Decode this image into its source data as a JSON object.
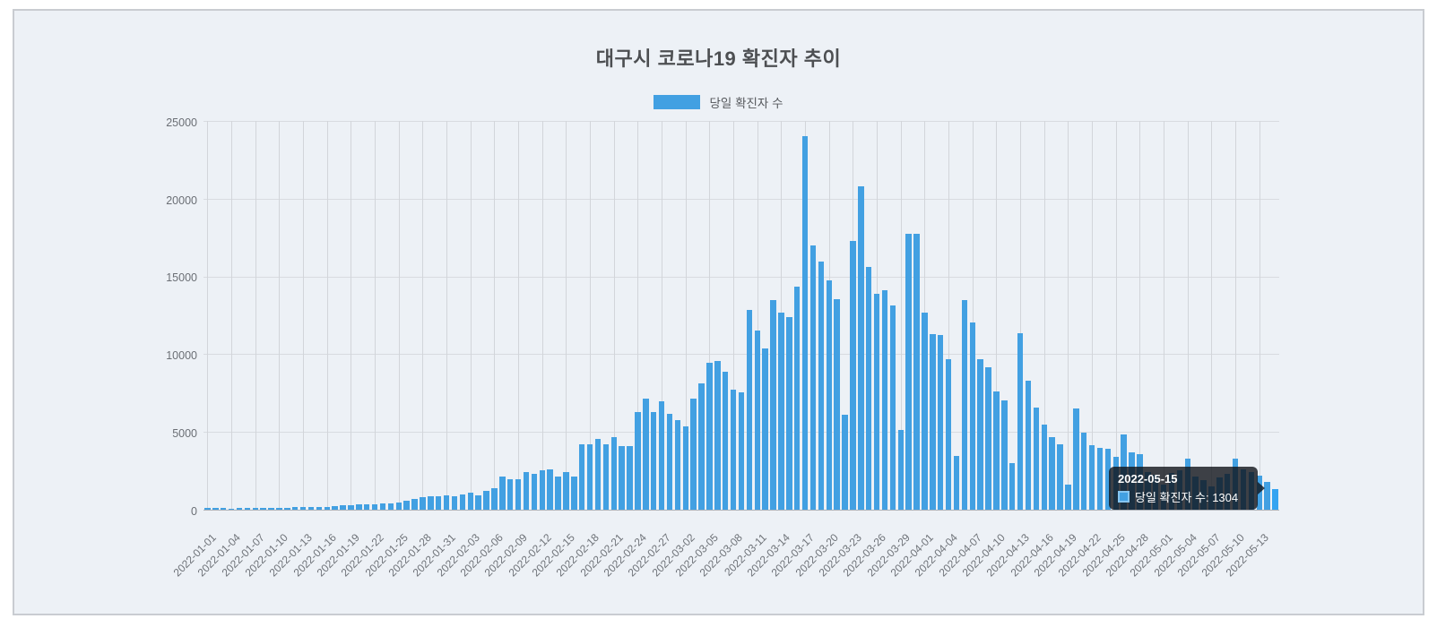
{
  "page": {
    "background": "#ffffff",
    "panel_background": "#edf1f6",
    "panel_border": "#c9ccd1"
  },
  "chart": {
    "title": "대구시 코로나19 확진자 추이",
    "legend": {
      "label": "당일 확진자 수"
    },
    "y_axis": {
      "tick_labels": [
        "0",
        "5000",
        "10000",
        "15000",
        "20000",
        "25000"
      ]
    },
    "tooltip": {
      "title": "2022-05-15",
      "line": "당일 확진자 수: 1304"
    }
  },
  "chart_data": {
    "type": "bar",
    "title": "대구시 코로나19 확진자 추이",
    "series_name": "당일 확진자 수",
    "bar_color": "#42a0e2",
    "hover_bar_color": "#35a4f1",
    "ylim": [
      0,
      25000
    ],
    "y_ticks": [
      0,
      5000,
      10000,
      15000,
      20000,
      25000
    ],
    "x_tick_every": 3,
    "grid": true,
    "legend_position": "top",
    "hovered_point": {
      "date": "2022-05-15",
      "value": 1304
    },
    "x": [
      "2022-01-01",
      "2022-01-02",
      "2022-01-03",
      "2022-01-04",
      "2022-01-05",
      "2022-01-06",
      "2022-01-07",
      "2022-01-08",
      "2022-01-09",
      "2022-01-10",
      "2022-01-11",
      "2022-01-12",
      "2022-01-13",
      "2022-01-14",
      "2022-01-15",
      "2022-01-16",
      "2022-01-17",
      "2022-01-18",
      "2022-01-19",
      "2022-01-20",
      "2022-01-21",
      "2022-01-22",
      "2022-01-23",
      "2022-01-24",
      "2022-01-25",
      "2022-01-26",
      "2022-01-27",
      "2022-01-28",
      "2022-01-29",
      "2022-01-30",
      "2022-01-31",
      "2022-02-01",
      "2022-02-02",
      "2022-02-03",
      "2022-02-04",
      "2022-02-05",
      "2022-02-06",
      "2022-02-07",
      "2022-02-08",
      "2022-02-09",
      "2022-02-10",
      "2022-02-11",
      "2022-02-12",
      "2022-02-13",
      "2022-02-14",
      "2022-02-15",
      "2022-02-16",
      "2022-02-17",
      "2022-02-18",
      "2022-02-19",
      "2022-02-20",
      "2022-02-21",
      "2022-02-22",
      "2022-02-23",
      "2022-02-24",
      "2022-02-25",
      "2022-02-26",
      "2022-02-27",
      "2022-02-28",
      "2022-03-01",
      "2022-03-02",
      "2022-03-03",
      "2022-03-04",
      "2022-03-05",
      "2022-03-06",
      "2022-03-07",
      "2022-03-08",
      "2022-03-09",
      "2022-03-10",
      "2022-03-11",
      "2022-03-12",
      "2022-03-13",
      "2022-03-14",
      "2022-03-15",
      "2022-03-16",
      "2022-03-17",
      "2022-03-18",
      "2022-03-19",
      "2022-03-20",
      "2022-03-21",
      "2022-03-22",
      "2022-03-23",
      "2022-03-24",
      "2022-03-25",
      "2022-03-26",
      "2022-03-27",
      "2022-03-28",
      "2022-03-29",
      "2022-03-30",
      "2022-03-31",
      "2022-04-01",
      "2022-04-02",
      "2022-04-03",
      "2022-04-04",
      "2022-04-05",
      "2022-04-06",
      "2022-04-07",
      "2022-04-08",
      "2022-04-09",
      "2022-04-10",
      "2022-04-11",
      "2022-04-12",
      "2022-04-13",
      "2022-04-14",
      "2022-04-15",
      "2022-04-16",
      "2022-04-17",
      "2022-04-18",
      "2022-04-19",
      "2022-04-20",
      "2022-04-21",
      "2022-04-22",
      "2022-04-23",
      "2022-04-24",
      "2022-04-25",
      "2022-04-26",
      "2022-04-27",
      "2022-04-28",
      "2022-04-29",
      "2022-04-30",
      "2022-05-01",
      "2022-05-02",
      "2022-05-03",
      "2022-05-04",
      "2022-05-05",
      "2022-05-06",
      "2022-05-07",
      "2022-05-08",
      "2022-05-09",
      "2022-05-10",
      "2022-05-11",
      "2022-05-12",
      "2022-05-13",
      "2022-05-14",
      "2022-05-15"
    ],
    "values": [
      120,
      95,
      105,
      85,
      110,
      100,
      115,
      130,
      110,
      125,
      140,
      155,
      150,
      170,
      185,
      200,
      230,
      260,
      290,
      330,
      360,
      340,
      380,
      403,
      442,
      595,
      710,
      826,
      864,
      864,
      922,
      864,
      979,
      1075,
      922,
      1210,
      1402,
      2131,
      1939,
      1939,
      2419,
      2323,
      2515,
      2611,
      2131,
      2419,
      2131,
      4205,
      4205,
      4531,
      4205,
      4685,
      4090,
      4090,
      6278,
      7142,
      6278,
      6970,
      6163,
      5779,
      5357,
      7123,
      8122,
      9466,
      9542,
      8851,
      7738,
      7565,
      12845,
      11539,
      10349,
      13459,
      12653,
      12384,
      14323,
      24022,
      16993,
      15958,
      14770,
      13544,
      6111,
      17280,
      20806,
      15594,
      13908,
      14100,
      13141,
      5153,
      17759,
      17759,
      12663,
      11300,
      11226,
      9655,
      3448,
      13467,
      12030,
      9693,
      9176,
      7624,
      7011,
      2969,
      11322,
      8295,
      6571,
      5460,
      4655,
      4214,
      1590,
      6533,
      4962,
      4160,
      3980,
      3908,
      3372,
      4866,
      3659,
      3544,
      2428,
      2219,
      1620,
      2357,
      2510,
      3276,
      2149,
      1893,
      1494,
      2079,
      2302,
      3283,
      2616,
      2410,
      2188,
      1793,
      1304
    ]
  }
}
